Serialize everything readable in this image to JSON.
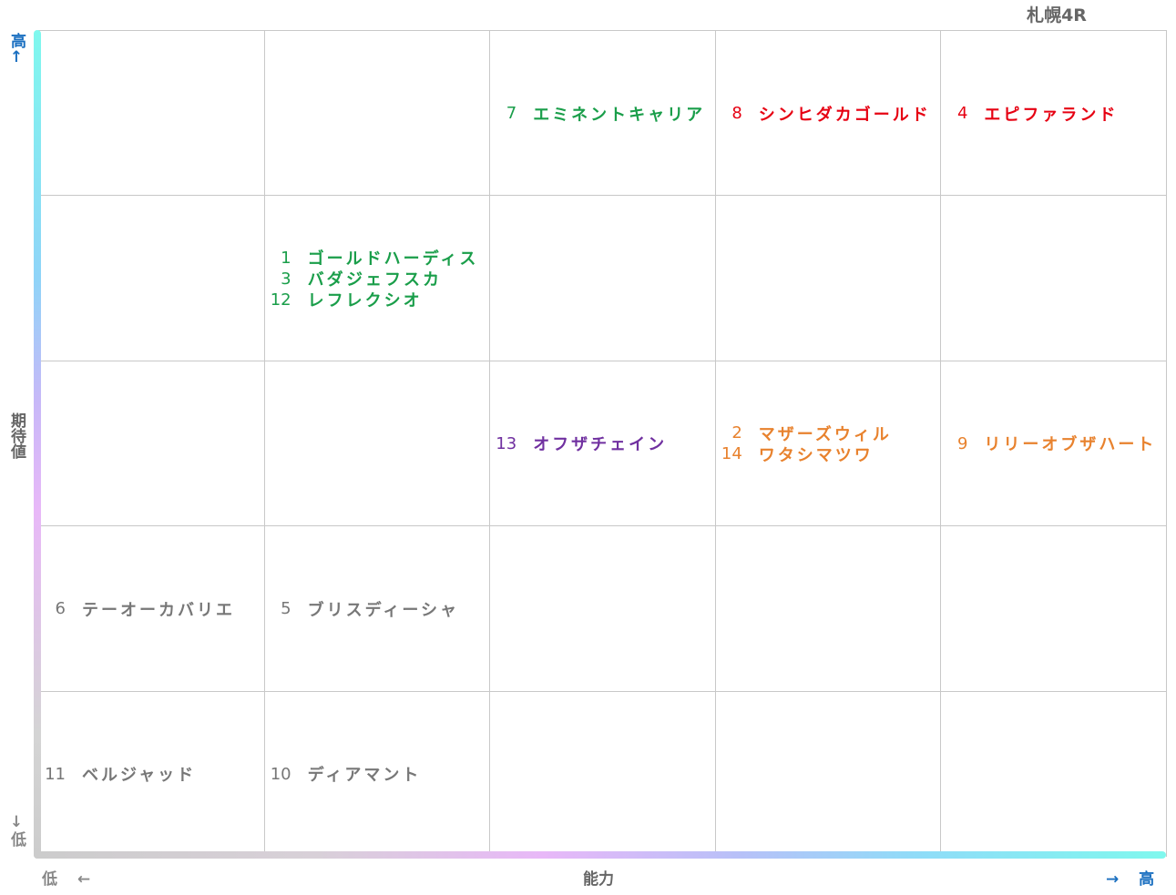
{
  "title": "札幌4R",
  "y_axis": {
    "top": "高↑",
    "label": "期待値",
    "bottom": "↓低"
  },
  "x_axis": {
    "left": "低 ←",
    "label": "能力",
    "right": "→ 高"
  },
  "grid": {
    "rows": [
      [
        [],
        [],
        [
          {
            "number": 7,
            "name": "エミネントキャリア",
            "color": "#1a9e4a"
          }
        ],
        [
          {
            "number": 8,
            "name": "シンヒダカゴールド",
            "color": "#e60012"
          }
        ],
        [
          {
            "number": 4,
            "name": "エピファランド",
            "color": "#e60012"
          }
        ]
      ],
      [
        [],
        [
          {
            "number": 1,
            "name": "ゴールドハーディス",
            "color": "#1a9e4a"
          },
          {
            "number": 3,
            "name": "バダジェフスカ",
            "color": "#1a9e4a"
          },
          {
            "number": 12,
            "name": "レフレクシオ",
            "color": "#1a9e4a"
          }
        ],
        [],
        [],
        []
      ],
      [
        [],
        [],
        [
          {
            "number": 13,
            "name": "オフザチェイン",
            "color": "#7030a0"
          }
        ],
        [
          {
            "number": 2,
            "name": "マザーズウィル",
            "color": "#e8822e"
          },
          {
            "number": 14,
            "name": "ワタシマツワ",
            "color": "#e8822e"
          }
        ],
        [
          {
            "number": 9,
            "name": "リリーオブザハート",
            "color": "#e8822e"
          }
        ]
      ],
      [
        [
          {
            "number": 6,
            "name": "テーオーカバリエ",
            "color": "#777777"
          }
        ],
        [
          {
            "number": 5,
            "name": "ブリスディーシャ",
            "color": "#777777"
          }
        ],
        [],
        [],
        []
      ],
      [
        [
          {
            "number": 11,
            "name": "ベルジャッド",
            "color": "#777777"
          }
        ],
        [
          {
            "number": 10,
            "name": "ディアマント",
            "color": "#777777"
          }
        ],
        [],
        [],
        []
      ]
    ]
  }
}
